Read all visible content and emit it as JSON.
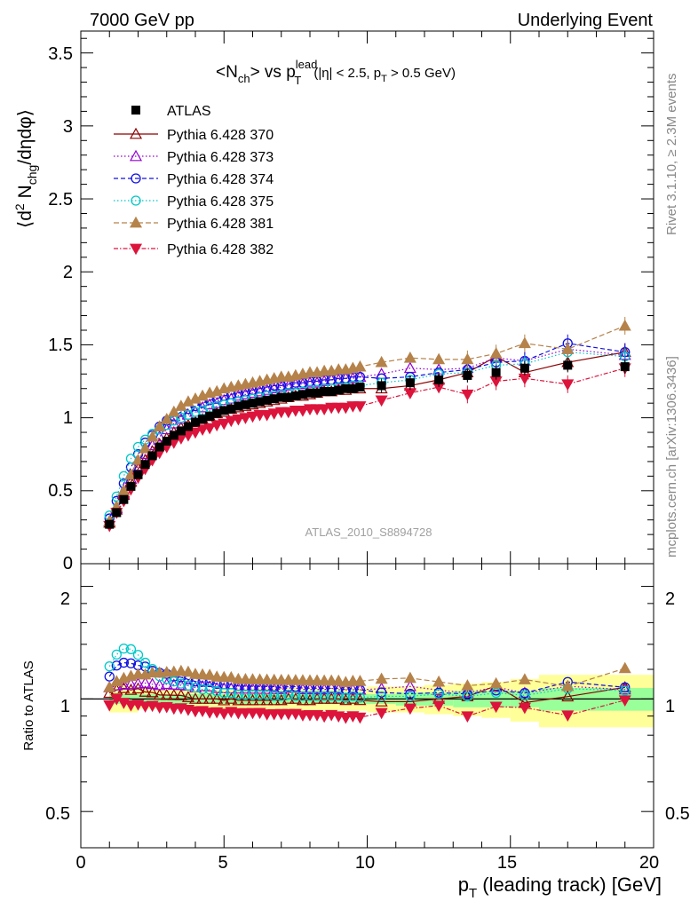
{
  "header": {
    "left": "7000 GeV pp",
    "right": "Underlying Event"
  },
  "side": {
    "rivet": "Rivet 3.1.10, ≥ 2.3M events",
    "mcplots": "mcplots.cern.ch [arXiv:1306.3436]"
  },
  "analysis_id": "ATLAS_2010_S8894728",
  "title": {
    "part1": "<N",
    "sub1": "ch",
    "part2": "> vs p",
    "sup": "lead",
    "sub2": "T",
    "cond1": "(|η| < 2.5, p",
    "cond_sub": "T",
    "cond2": " > 0.5 GeV)"
  },
  "ylabel_main": {
    "a": "⟨d",
    "sup": "2",
    "b": " N",
    "sub": "chg",
    "c": "/dηdφ⟩"
  },
  "ylabel_ratio": "Ratio to ATLAS",
  "xlabel": {
    "a": "p",
    "sub": "T",
    "b": " (leading track) [GeV]"
  },
  "main_ticks": [
    "0",
    "0.5",
    "1",
    "1.5",
    "2",
    "2.5",
    "3",
    "3.5"
  ],
  "ratio_ticks_left": [
    "0.5",
    "1",
    "2"
  ],
  "ratio_ticks_right": [
    "0.5",
    "1",
    "2"
  ],
  "x_ticks": [
    "0",
    "5",
    "10",
    "15",
    "20"
  ],
  "chart_data": {
    "type": "scatter",
    "xlim": [
      0,
      20
    ],
    "ylim": [
      0,
      3.65
    ],
    "ratio_ylim": [
      0.4,
      2.3
    ],
    "ratio_log": true,
    "x": [
      1.0,
      1.25,
      1.5,
      1.75,
      2.0,
      2.25,
      2.5,
      2.75,
      3.0,
      3.25,
      3.5,
      3.75,
      4.0,
      4.25,
      4.5,
      4.75,
      5.0,
      5.25,
      5.5,
      5.75,
      6.0,
      6.25,
      6.5,
      6.75,
      7.0,
      7.25,
      7.5,
      7.75,
      8.0,
      8.25,
      8.5,
      8.75,
      9.0,
      9.25,
      9.5,
      9.75,
      10.5,
      11.5,
      12.5,
      13.5,
      14.5,
      15.5,
      17.0,
      19.0
    ],
    "data": {
      "name": "ATLAS",
      "values": [
        0.27,
        0.35,
        0.44,
        0.53,
        0.61,
        0.68,
        0.74,
        0.8,
        0.84,
        0.88,
        0.91,
        0.94,
        0.97,
        0.99,
        1.01,
        1.03,
        1.05,
        1.06,
        1.08,
        1.09,
        1.1,
        1.11,
        1.12,
        1.13,
        1.14,
        1.14,
        1.15,
        1.16,
        1.17,
        1.17,
        1.18,
        1.18,
        1.19,
        1.2,
        1.2,
        1.21,
        1.22,
        1.24,
        1.26,
        1.29,
        1.31,
        1.34,
        1.36,
        1.35
      ]
    },
    "series": [
      {
        "name": "Pythia 6.428 370",
        "color": "#8b0000",
        "marker": "triangle-open",
        "dash": "",
        "values": [
          0.28,
          0.37,
          0.47,
          0.56,
          0.65,
          0.71,
          0.77,
          0.82,
          0.86,
          0.9,
          0.93,
          0.95,
          0.97,
          0.99,
          1.01,
          1.03,
          1.04,
          1.06,
          1.07,
          1.08,
          1.09,
          1.1,
          1.11,
          1.12,
          1.13,
          1.14,
          1.15,
          1.15,
          1.16,
          1.17,
          1.18,
          1.18,
          1.19,
          1.19,
          1.2,
          1.2,
          1.2,
          1.22,
          1.26,
          1.31,
          1.42,
          1.31,
          1.38,
          1.45
        ]
      },
      {
        "name": "Pythia 6.428 373",
        "color": "#9400d3",
        "marker": "triangle-open",
        "dash": "1.5,2.5",
        "values": [
          0.29,
          0.38,
          0.48,
          0.58,
          0.67,
          0.75,
          0.81,
          0.87,
          0.92,
          0.96,
          0.99,
          1.02,
          1.04,
          1.07,
          1.09,
          1.1,
          1.12,
          1.13,
          1.15,
          1.16,
          1.17,
          1.18,
          1.19,
          1.2,
          1.21,
          1.22,
          1.23,
          1.23,
          1.24,
          1.24,
          1.25,
          1.26,
          1.26,
          1.27,
          1.27,
          1.28,
          1.3,
          1.34,
          1.33,
          1.34,
          1.41,
          1.39,
          1.47,
          1.43
        ]
      },
      {
        "name": "Pythia 6.428 374",
        "color": "#1010e0",
        "marker": "circle-open",
        "dash": "5,3",
        "values": [
          0.31,
          0.43,
          0.55,
          0.66,
          0.75,
          0.83,
          0.88,
          0.94,
          0.98,
          1.01,
          1.04,
          1.06,
          1.08,
          1.1,
          1.12,
          1.13,
          1.15,
          1.16,
          1.17,
          1.18,
          1.19,
          1.2,
          1.21,
          1.22,
          1.22,
          1.23,
          1.24,
          1.24,
          1.25,
          1.25,
          1.26,
          1.26,
          1.27,
          1.27,
          1.28,
          1.28,
          1.27,
          1.28,
          1.31,
          1.33,
          1.38,
          1.39,
          1.51,
          1.45
        ]
      },
      {
        "name": "Pythia 6.428 375",
        "color": "#00c8c8",
        "marker": "circle-open",
        "dash": "1.5,2.5",
        "values": [
          0.33,
          0.46,
          0.6,
          0.72,
          0.8,
          0.85,
          0.89,
          0.92,
          0.95,
          0.98,
          1.0,
          1.02,
          1.04,
          1.05,
          1.07,
          1.08,
          1.09,
          1.1,
          1.11,
          1.12,
          1.13,
          1.14,
          1.15,
          1.15,
          1.16,
          1.17,
          1.17,
          1.18,
          1.19,
          1.19,
          1.2,
          1.2,
          1.21,
          1.21,
          1.22,
          1.22,
          1.24,
          1.26,
          1.3,
          1.31,
          1.36,
          1.37,
          1.45,
          1.42
        ]
      },
      {
        "name": "Pythia 6.428 381",
        "color": "#b5824a",
        "marker": "triangle-filled",
        "dash": "6,3",
        "values": [
          0.29,
          0.39,
          0.5,
          0.61,
          0.71,
          0.79,
          0.87,
          0.94,
          0.99,
          1.04,
          1.08,
          1.11,
          1.13,
          1.15,
          1.17,
          1.18,
          1.2,
          1.21,
          1.22,
          1.23,
          1.24,
          1.25,
          1.26,
          1.27,
          1.28,
          1.28,
          1.29,
          1.3,
          1.31,
          1.31,
          1.32,
          1.32,
          1.33,
          1.33,
          1.34,
          1.35,
          1.38,
          1.41,
          1.4,
          1.4,
          1.44,
          1.51,
          1.47,
          1.63
        ]
      },
      {
        "name": "Pythia 6.428 382",
        "color": "#dc143c",
        "marker": "triangle-down-filled",
        "dash": "5,2,1.5,2",
        "values": [
          0.26,
          0.35,
          0.43,
          0.51,
          0.59,
          0.65,
          0.71,
          0.76,
          0.8,
          0.83,
          0.86,
          0.88,
          0.9,
          0.92,
          0.93,
          0.95,
          0.96,
          0.98,
          0.99,
          1.0,
          1.01,
          1.02,
          1.02,
          1.03,
          1.04,
          1.04,
          1.05,
          1.05,
          1.06,
          1.06,
          1.06,
          1.07,
          1.07,
          1.07,
          1.08,
          1.08,
          1.12,
          1.17,
          1.21,
          1.16,
          1.25,
          1.27,
          1.23,
          1.34
        ]
      }
    ],
    "band_edges": [
      1,
      2,
      3,
      4,
      5,
      6,
      7,
      8,
      9,
      10,
      11,
      12,
      13,
      14,
      15,
      16,
      20
    ],
    "band_inner": [
      0.03,
      0.03,
      0.03,
      0.03,
      0.03,
      0.03,
      0.03,
      0.03,
      0.03,
      0.03,
      0.04,
      0.04,
      0.05,
      0.05,
      0.05,
      0.07,
      0.07
    ],
    "band_outer": [
      0.08,
      0.06,
      0.06,
      0.06,
      0.06,
      0.07,
      0.07,
      0.07,
      0.07,
      0.08,
      0.08,
      0.09,
      0.1,
      0.11,
      0.13,
      0.16,
      0.16
    ],
    "legend_position": "top-left"
  }
}
